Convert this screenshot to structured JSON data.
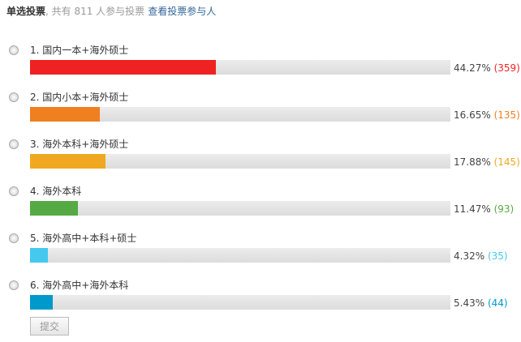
{
  "header": {
    "type": "单选投票",
    "summary": ", 共有 811 人参与投票",
    "link": "查看投票参与人"
  },
  "options": [
    {
      "label": "1.  国内一本+海外硕士",
      "percent": 44.27,
      "percent_text": "44.27%",
      "count_text": "(359)",
      "color": "#ee2222"
    },
    {
      "label": "2.  国内小本+海外硕士",
      "percent": 16.65,
      "percent_text": "16.65%",
      "count_text": "(135)",
      "color": "#f07f20"
    },
    {
      "label": "3.  海外本科+海外硕士",
      "percent": 17.88,
      "percent_text": "17.88%",
      "count_text": "(145)",
      "color": "#f0a820"
    },
    {
      "label": "4.  海外本科",
      "percent": 11.47,
      "percent_text": "11.47%",
      "count_text": "(93)",
      "color": "#55aa44"
    },
    {
      "label": "5.  海外高中+本科+硕士",
      "percent": 4.32,
      "percent_text": "4.32%",
      "count_text": "(35)",
      "color": "#44c8ee"
    },
    {
      "label": "6.  海外高中+海外本科",
      "percent": 5.43,
      "percent_text": "5.43%",
      "count_text": "(44)",
      "color": "#0099cc"
    }
  ],
  "submit_label": "提交"
}
